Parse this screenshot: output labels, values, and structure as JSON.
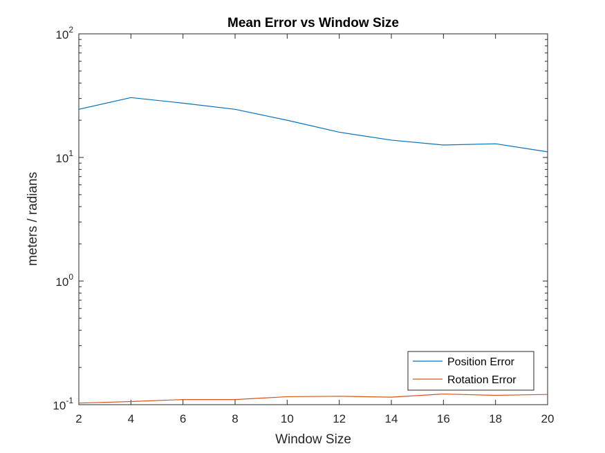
{
  "chart_data": {
    "type": "line",
    "title": "Mean Error vs Window Size",
    "xlabel": "Window Size",
    "ylabel": "meters / radians",
    "x": [
      2,
      4,
      6,
      8,
      10,
      12,
      14,
      16,
      18,
      20
    ],
    "xlim": [
      2,
      20
    ],
    "xticks": [
      2,
      4,
      6,
      8,
      10,
      12,
      14,
      16,
      18,
      20
    ],
    "yscale": "log",
    "ylim": [
      0.1,
      100
    ],
    "yticks": [
      {
        "value": 0.1,
        "base": "10",
        "exp": "-1"
      },
      {
        "value": 1,
        "base": "10",
        "exp": "0"
      },
      {
        "value": 10,
        "base": "10",
        "exp": "1"
      },
      {
        "value": 100,
        "base": "10",
        "exp": "2"
      }
    ],
    "grid": false,
    "legend_location": "bottom-right",
    "series": [
      {
        "name": "Position Error",
        "color": "#0072BD",
        "values": [
          24.5,
          30.5,
          27.5,
          24.5,
          20.0,
          16.0,
          13.8,
          12.6,
          12.9,
          11.1
        ]
      },
      {
        "name": "Rotation Error",
        "color": "#D95319",
        "values": [
          0.103,
          0.106,
          0.11,
          0.11,
          0.116,
          0.117,
          0.115,
          0.122,
          0.119,
          0.121
        ]
      }
    ]
  }
}
